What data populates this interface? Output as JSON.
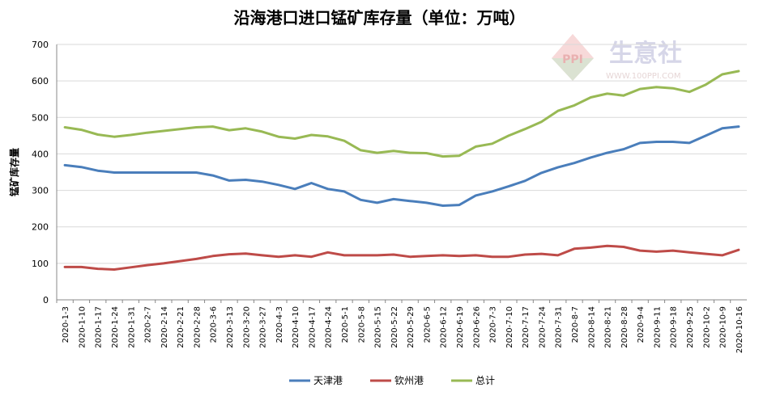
{
  "chart_data": {
    "type": "line",
    "title": "沿海港口进口锰矿库存量（单位：万吨）",
    "ylabel": "锰矿库存量",
    "xlabel": "",
    "ylim": [
      0,
      700
    ],
    "yticks": [
      0,
      100,
      200,
      300,
      400,
      500,
      600,
      700
    ],
    "grid": true,
    "legend_position": "bottom",
    "categories": [
      "2020-1-3",
      "2020-1-10",
      "2020-1-17",
      "2020-1-24",
      "2020-1-31",
      "2020-2-7",
      "2020-2-14",
      "2020-2-21",
      "2020-2-28",
      "2020-3-6",
      "2020-3-13",
      "2020-3-20",
      "2020-3-27",
      "2020-4-3",
      "2020-4-10",
      "2020-4-17",
      "2020-4-24",
      "2020-5-1",
      "2020-5-8",
      "2020-5-15",
      "2020-5-22",
      "2020-5-29",
      "2020-6-5",
      "2020-6-12",
      "2020-6-19",
      "2020-6-26",
      "2020-7-3",
      "2020-7-10",
      "2020-7-17",
      "2020-7-24",
      "2020-7-31",
      "2020-8-7",
      "2020-8-14",
      "2020-8-21",
      "2020-8-28",
      "2020-9-4",
      "2020-9-11",
      "2020-9-18",
      "2020-9-25",
      "2020-10-2",
      "2020-10-9",
      "2020-10-16"
    ],
    "series": [
      {
        "name": "天津港",
        "color": "#4a7ebb",
        "values": [
          369,
          364,
          354,
          349,
          349,
          349,
          349,
          349,
          349,
          341,
          327,
          329,
          324,
          315,
          304,
          320,
          304,
          297,
          274,
          266,
          276,
          271,
          266,
          258,
          260,
          286,
          297,
          311,
          326,
          348,
          363,
          375,
          390,
          403,
          413,
          430,
          433,
          433,
          430,
          450,
          470,
          475
        ]
      },
      {
        "name": "钦州港",
        "color": "#be4b48",
        "values": [
          90,
          90,
          85,
          83,
          89,
          95,
          100,
          106,
          112,
          120,
          125,
          127,
          122,
          118,
          122,
          118,
          130,
          122,
          122,
          122,
          124,
          118,
          120,
          122,
          120,
          122,
          118,
          118,
          124,
          126,
          122,
          140,
          143,
          148,
          145,
          135,
          132,
          135,
          130,
          126,
          122,
          137
        ]
      },
      {
        "name": "总计",
        "color": "#98b954",
        "values": [
          473,
          466,
          453,
          447,
          452,
          458,
          463,
          468,
          473,
          475,
          465,
          470,
          461,
          447,
          442,
          452,
          448,
          436,
          410,
          403,
          408,
          403,
          402,
          393,
          395,
          420,
          428,
          450,
          468,
          488,
          518,
          533,
          555,
          565,
          560,
          578,
          583,
          580,
          570,
          590,
          618,
          627
        ]
      }
    ]
  },
  "watermark": {
    "text": "生意社",
    "url": "WWW.100PPI.COM",
    "logo_text": "PPI"
  }
}
